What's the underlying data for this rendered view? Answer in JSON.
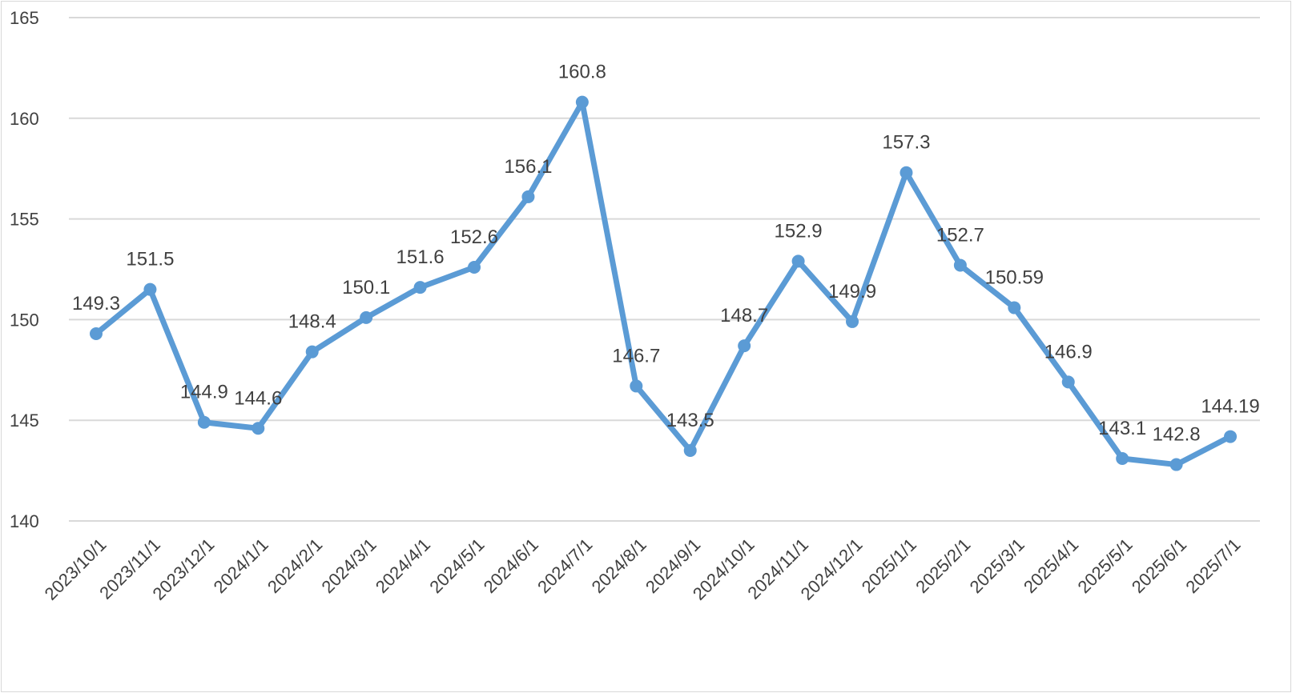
{
  "chart_data": {
    "type": "line",
    "title": "",
    "xlabel": "",
    "ylabel": "",
    "ylim": [
      140,
      165
    ],
    "y_ticks": [
      140,
      145,
      150,
      155,
      160,
      165
    ],
    "grid": "horizontal",
    "legend": "none",
    "categories": [
      "2023/10/1",
      "2023/11/1",
      "2023/12/1",
      "2024/1/1",
      "2024/2/1",
      "2024/3/1",
      "2024/4/1",
      "2024/5/1",
      "2024/6/1",
      "2024/7/1",
      "2024/8/1",
      "2024/9/1",
      "2024/10/1",
      "2024/11/1",
      "2024/12/1",
      "2025/1/1",
      "2025/2/1",
      "2025/3/1",
      "2025/4/1",
      "2025/5/1",
      "2025/6/1",
      "2025/7/1"
    ],
    "series": [
      {
        "values": [
          149.3,
          151.5,
          144.9,
          144.6,
          148.4,
          150.1,
          151.6,
          152.6,
          156.1,
          160.8,
          146.7,
          143.5,
          148.7,
          152.9,
          149.9,
          157.3,
          152.7,
          150.59,
          146.9,
          143.1,
          142.8,
          144.19
        ],
        "labels": [
          "149.3",
          "151.5",
          "144.9",
          "144.6",
          "148.4",
          "150.1",
          "151.6",
          "152.6",
          "156.1",
          "160.8",
          "146.7",
          "143.5",
          "148.7",
          "152.9",
          "149.9",
          "157.3",
          "152.7",
          "150.59",
          "146.9",
          "143.1",
          "142.8",
          "144.19"
        ],
        "color": "#5b9bd5"
      }
    ],
    "gridline_color": "#d9d9d9"
  }
}
